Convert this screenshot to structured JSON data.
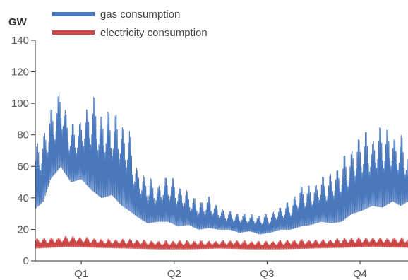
{
  "chart_data": {
    "type": "line",
    "unit_label": "GW",
    "ylim": [
      0,
      140
    ],
    "y_ticks": [
      0,
      20,
      40,
      60,
      80,
      100,
      120,
      140
    ],
    "x_range": [
      0,
      365
    ],
    "x_ticks": [
      {
        "label": "Q1",
        "day": 45
      },
      {
        "label": "Q2",
        "day": 136
      },
      {
        "label": "Q3",
        "day": 227
      },
      {
        "label": "Q4",
        "day": 318
      }
    ],
    "legend_position": "top-left",
    "grid": false,
    "series": [
      {
        "name": "gas consumption",
        "color": "#4a78bd",
        "envelope": [
          {
            "day": 0,
            "low": 33,
            "high": 72
          },
          {
            "day": 8,
            "low": 38,
            "high": 85
          },
          {
            "day": 15,
            "low": 52,
            "high": 100
          },
          {
            "day": 25,
            "low": 60,
            "high": 118
          },
          {
            "day": 35,
            "low": 50,
            "high": 90
          },
          {
            "day": 45,
            "low": 52,
            "high": 92
          },
          {
            "day": 55,
            "low": 45,
            "high": 108
          },
          {
            "day": 65,
            "low": 40,
            "high": 100
          },
          {
            "day": 75,
            "low": 42,
            "high": 103
          },
          {
            "day": 85,
            "low": 35,
            "high": 98
          },
          {
            "day": 92,
            "low": 32,
            "high": 88
          },
          {
            "day": 100,
            "low": 28,
            "high": 60
          },
          {
            "day": 110,
            "low": 24,
            "high": 55
          },
          {
            "day": 120,
            "low": 25,
            "high": 50
          },
          {
            "day": 130,
            "low": 25,
            "high": 60
          },
          {
            "day": 140,
            "low": 22,
            "high": 53
          },
          {
            "day": 150,
            "low": 23,
            "high": 45
          },
          {
            "day": 160,
            "low": 20,
            "high": 38
          },
          {
            "day": 170,
            "low": 21,
            "high": 42
          },
          {
            "day": 180,
            "low": 20,
            "high": 36
          },
          {
            "day": 190,
            "low": 20,
            "high": 33
          },
          {
            "day": 200,
            "low": 18,
            "high": 32
          },
          {
            "day": 210,
            "low": 19,
            "high": 30
          },
          {
            "day": 220,
            "low": 17,
            "high": 30
          },
          {
            "day": 230,
            "low": 18,
            "high": 31
          },
          {
            "day": 240,
            "low": 20,
            "high": 37
          },
          {
            "day": 250,
            "low": 20,
            "high": 40
          },
          {
            "day": 260,
            "low": 22,
            "high": 50
          },
          {
            "day": 270,
            "low": 23,
            "high": 48
          },
          {
            "day": 280,
            "low": 25,
            "high": 55
          },
          {
            "day": 290,
            "low": 24,
            "high": 60
          },
          {
            "day": 300,
            "low": 25,
            "high": 70
          },
          {
            "day": 310,
            "low": 30,
            "high": 75
          },
          {
            "day": 320,
            "low": 32,
            "high": 85
          },
          {
            "day": 330,
            "low": 35,
            "high": 80
          },
          {
            "day": 340,
            "low": 34,
            "high": 94
          },
          {
            "day": 350,
            "low": 38,
            "high": 88
          },
          {
            "day": 358,
            "low": 35,
            "high": 85
          },
          {
            "day": 365,
            "low": 38,
            "high": 75
          }
        ]
      },
      {
        "name": "electricity consumption",
        "color": "#cc4646",
        "envelope": [
          {
            "day": 0,
            "low": 8,
            "high": 15
          },
          {
            "day": 30,
            "low": 9,
            "high": 16
          },
          {
            "day": 60,
            "low": 8.5,
            "high": 15
          },
          {
            "day": 90,
            "low": 8,
            "high": 14
          },
          {
            "day": 120,
            "low": 7.5,
            "high": 13.5
          },
          {
            "day": 150,
            "low": 7.5,
            "high": 13
          },
          {
            "day": 180,
            "low": 8,
            "high": 13.5
          },
          {
            "day": 210,
            "low": 7.5,
            "high": 13
          },
          {
            "day": 240,
            "low": 7.5,
            "high": 13.5
          },
          {
            "day": 270,
            "low": 8,
            "high": 14
          },
          {
            "day": 300,
            "low": 8.5,
            "high": 14.5
          },
          {
            "day": 330,
            "low": 9,
            "high": 15.5
          },
          {
            "day": 365,
            "low": 8.5,
            "high": 15
          }
        ]
      }
    ]
  }
}
